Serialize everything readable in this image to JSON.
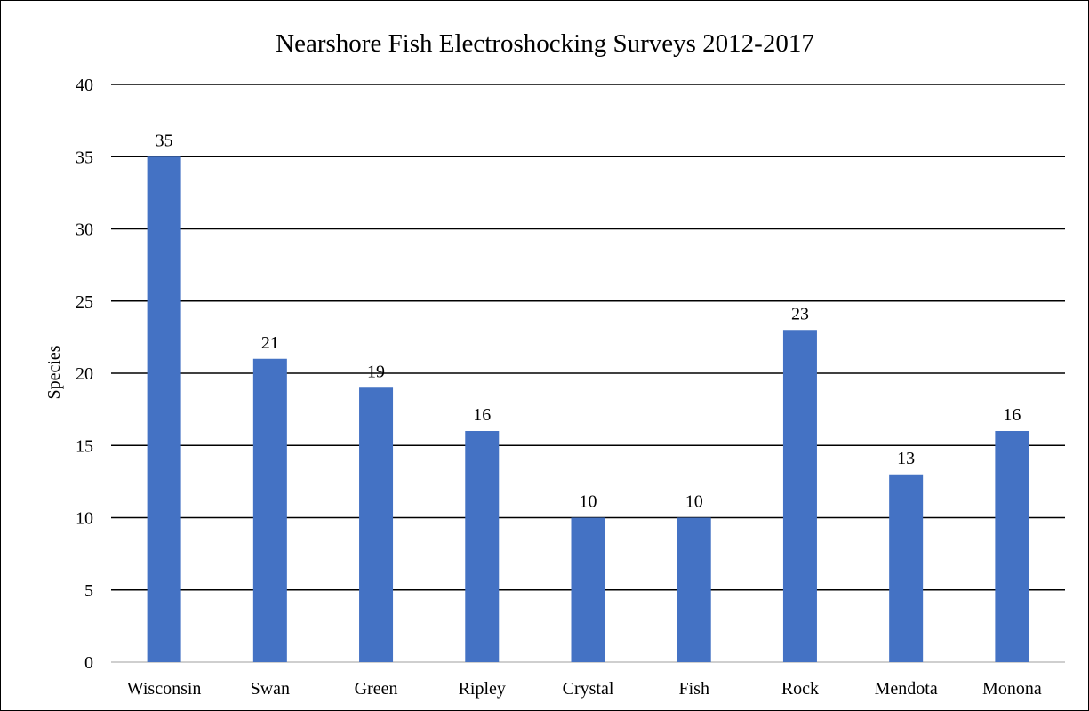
{
  "chart_data": {
    "type": "bar",
    "title": "Nearshore Fish Electroshocking Surveys 2012-2017",
    "xlabel": "",
    "ylabel": "Species",
    "categories": [
      "Wisconsin",
      "Swan",
      "Green",
      "Ripley",
      "Crystal",
      "Fish",
      "Rock",
      "Mendota",
      "Monona"
    ],
    "values": [
      35,
      21,
      19,
      16,
      10,
      10,
      23,
      13,
      16
    ],
    "ylim": [
      0,
      40
    ],
    "yticks": [
      0,
      5,
      10,
      15,
      20,
      25,
      30,
      35,
      40
    ],
    "grid": true,
    "legend": "none",
    "data_labels": true,
    "colors": {
      "bar": "#4472C4",
      "grid": "#000000",
      "axis": "#BFBFBF",
      "text": "#000000"
    }
  }
}
